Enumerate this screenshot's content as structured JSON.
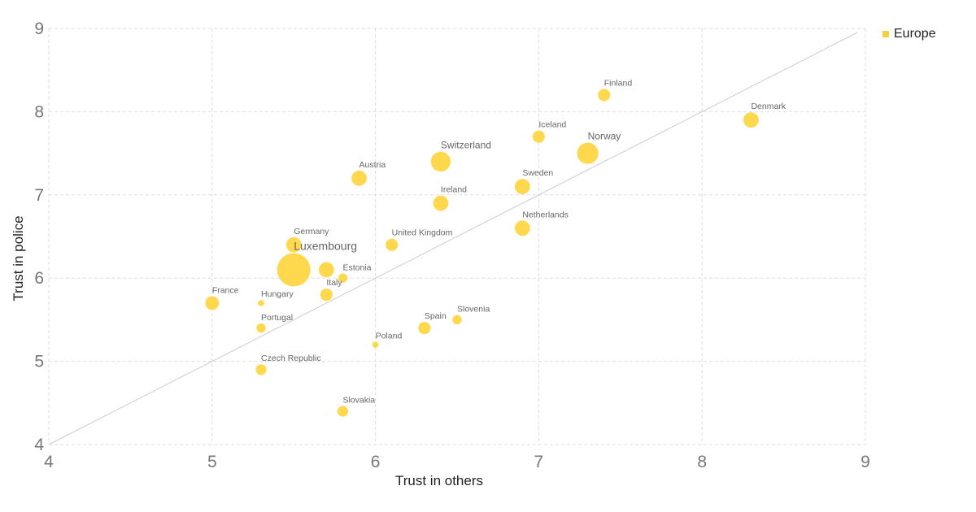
{
  "colors": {
    "point": "#FFD84D",
    "grid": "#dddddd",
    "diagonal": "#cccccc"
  },
  "legend": {
    "items": [
      {
        "label": "Europe",
        "color": "#F9CF3C"
      }
    ]
  },
  "chart_data": {
    "type": "scatter",
    "xlabel": "Trust in others",
    "ylabel": "Trust in police",
    "xlim": [
      4,
      9
    ],
    "ylim": [
      4,
      9
    ],
    "xticks": [
      "4",
      "5",
      "6",
      "7",
      "8",
      "9"
    ],
    "yticks": [
      "4",
      "5",
      "6",
      "7",
      "8",
      "9"
    ],
    "grid": true,
    "reference_line": "y = x",
    "legend_position": "top-right",
    "series": [
      {
        "name": "Europe",
        "points": [
          {
            "label": "Finland",
            "x": 7.4,
            "y": 8.2,
            "size": 3
          },
          {
            "label": "Denmark",
            "x": 8.3,
            "y": 7.9,
            "size": 4
          },
          {
            "label": "Iceland",
            "x": 7.0,
            "y": 7.7,
            "size": 3
          },
          {
            "label": "Norway",
            "x": 7.3,
            "y": 7.5,
            "size": 6
          },
          {
            "label": "Switzerland",
            "x": 6.4,
            "y": 7.4,
            "size": 5.5
          },
          {
            "label": "Austria",
            "x": 5.9,
            "y": 7.2,
            "size": 4
          },
          {
            "label": "Sweden",
            "x": 6.9,
            "y": 7.1,
            "size": 4
          },
          {
            "label": "Ireland",
            "x": 6.4,
            "y": 6.9,
            "size": 4
          },
          {
            "label": "Netherlands",
            "x": 6.9,
            "y": 6.6,
            "size": 4
          },
          {
            "label": "Germany",
            "x": 5.5,
            "y": 6.4,
            "size": 4
          },
          {
            "label": "United Kingdom",
            "x": 6.1,
            "y": 6.4,
            "size": 3
          },
          {
            "label": "Luxembourg",
            "x": 5.5,
            "y": 6.1,
            "size": 10
          },
          {
            "label": "",
            "x": 5.7,
            "y": 6.1,
            "size": 4
          },
          {
            "label": "Estonia",
            "x": 5.8,
            "y": 6.0,
            "size": 2
          },
          {
            "label": "Italy",
            "x": 5.7,
            "y": 5.8,
            "size": 3
          },
          {
            "label": "France",
            "x": 5.0,
            "y": 5.7,
            "size": 3.5
          },
          {
            "label": "Hungary",
            "x": 5.3,
            "y": 5.7,
            "size": 1
          },
          {
            "label": "Portugal",
            "x": 5.3,
            "y": 5.4,
            "size": 2
          },
          {
            "label": "Slovenia",
            "x": 6.5,
            "y": 5.5,
            "size": 2
          },
          {
            "label": "Spain",
            "x": 6.3,
            "y": 5.4,
            "size": 3
          },
          {
            "label": "Poland",
            "x": 6.0,
            "y": 5.2,
            "size": 1
          },
          {
            "label": "Czech Republic",
            "x": 5.3,
            "y": 4.9,
            "size": 2.5
          },
          {
            "label": "Slovakia",
            "x": 5.8,
            "y": 4.4,
            "size": 2.5
          }
        ]
      }
    ]
  }
}
